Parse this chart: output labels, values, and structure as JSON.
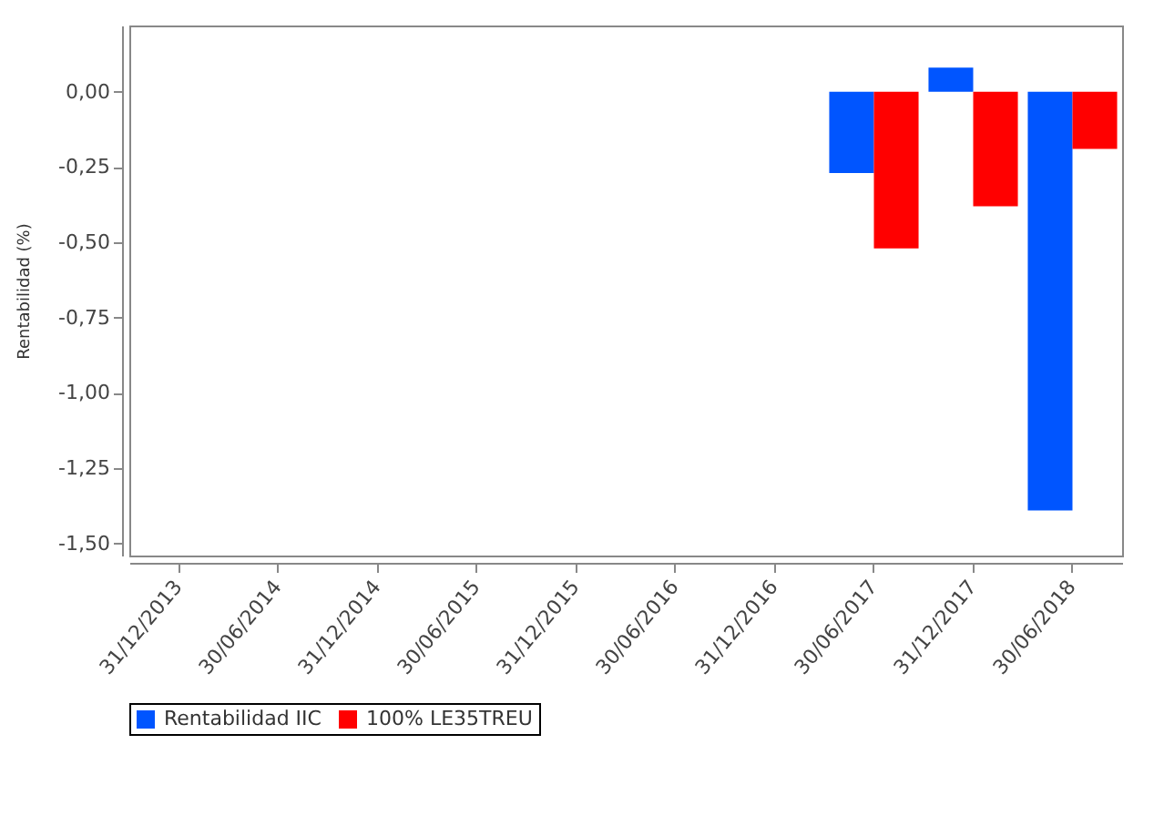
{
  "chart_data": {
    "type": "bar",
    "ylabel": "Rentabilidad (%)",
    "categories": [
      "31/12/2013",
      "30/06/2014",
      "31/12/2014",
      "30/06/2015",
      "31/12/2015",
      "30/06/2016",
      "31/12/2016",
      "30/06/2017",
      "31/12/2017",
      "30/06/2018"
    ],
    "series": [
      {
        "name": "Rentabilidad IIC",
        "color": "#0055ff",
        "values": [
          null,
          null,
          null,
          null,
          null,
          null,
          null,
          -0.27,
          0.08,
          -1.39
        ]
      },
      {
        "name": "100% LE35TREU",
        "color": "#ff0000",
        "values": [
          null,
          null,
          null,
          null,
          null,
          null,
          null,
          -0.52,
          -0.38,
          -0.19
        ]
      }
    ],
    "ylim": [
      -1.54,
      0.22
    ],
    "yticks": [
      {
        "value": 0,
        "label": "0,00"
      },
      {
        "value": -0.25,
        "label": "-0,25"
      },
      {
        "value": -0.5,
        "label": "-0,50"
      },
      {
        "value": -0.75,
        "label": "-0,75"
      },
      {
        "value": -1,
        "label": "-1,00"
      },
      {
        "value": -1.25,
        "label": "-1,25"
      },
      {
        "value": -1.5,
        "label": "-1,50"
      }
    ],
    "grid": false,
    "legend": "bottom"
  }
}
